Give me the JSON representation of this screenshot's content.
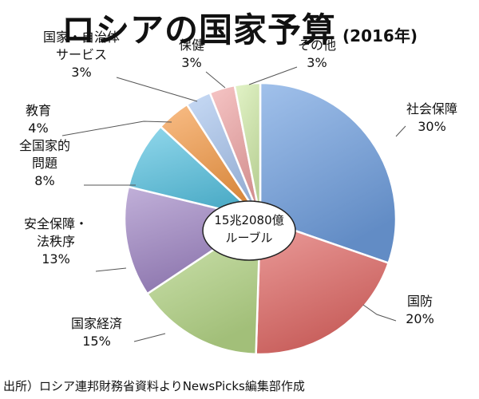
{
  "title": "ロシアの国家予算",
  "subtitle": "(2016年)",
  "source": "出所）ロシア連邦財務省資料よりNewsPicks編集部作成",
  "chart_data": {
    "type": "pie",
    "center_label": [
      "15兆2080億",
      "ルーブル"
    ],
    "slices": [
      {
        "label": [
          "社会保障"
        ],
        "value": 30,
        "value_label": "30%",
        "color": "#6f9fe0"
      },
      {
        "label": [
          "国防"
        ],
        "value": 20,
        "value_label": "20%",
        "color": "#e26a66"
      },
      {
        "label": [
          "国家経済"
        ],
        "value": 15,
        "value_label": "15%",
        "color": "#b8d98a"
      },
      {
        "label": [
          "安全保障・",
          "法秩序"
        ],
        "value": 13,
        "value_label": "13%",
        "color": "#9f85c5"
      },
      {
        "label": [
          "全国家的",
          "問題"
        ],
        "value": 8,
        "value_label": "8%",
        "color": "#58c3e2"
      },
      {
        "label": [
          "教育"
        ],
        "value": 4,
        "value_label": "4%",
        "color": "#f59a45"
      },
      {
        "label": [
          "国家・自治体",
          "サービス"
        ],
        "value": 3,
        "value_label": "3%",
        "color": "#a9c6f0"
      },
      {
        "label": [
          "保健"
        ],
        "value": 3,
        "value_label": "3%",
        "color": "#f1a5a5"
      },
      {
        "label": [
          "その他"
        ],
        "value": 3,
        "value_label": "3%",
        "color": "#d2eca9"
      }
    ]
  }
}
